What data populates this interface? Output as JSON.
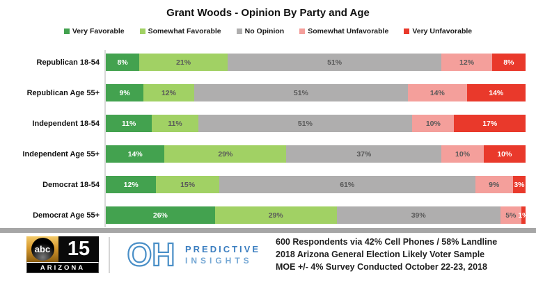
{
  "chart_data": {
    "type": "bar",
    "orientation": "horizontal",
    "stacked": true,
    "title": "Grant Woods - Opinion By Party and Age",
    "legend_position": "top",
    "xlim": [
      0,
      100
    ],
    "value_suffix": "%",
    "categories": [
      "Republican 18-54",
      "Republican Age 55+",
      "Independent 18-54",
      "Independent Age 55+",
      "Democrat 18-54",
      "Democrat Age 55+"
    ],
    "series": [
      {
        "name": "Very Favorable",
        "color": "#43A24F",
        "label_color": "#ffffff",
        "values": [
          8,
          9,
          11,
          14,
          12,
          26
        ]
      },
      {
        "name": "Somewhat Favorable",
        "color": "#A1D164",
        "label_color": "#595959",
        "values": [
          21,
          12,
          11,
          29,
          15,
          29
        ]
      },
      {
        "name": "No Opinion",
        "color": "#AFAEAE",
        "label_color": "#595959",
        "values": [
          51,
          51,
          51,
          37,
          61,
          39
        ]
      },
      {
        "name": "Somewhat Unfavorable",
        "color": "#F49F9B",
        "label_color": "#595959",
        "values": [
          12,
          14,
          10,
          10,
          9,
          5
        ]
      },
      {
        "name": "Very Unfavorable",
        "color": "#E9392B",
        "label_color": "#ffffff",
        "values": [
          8,
          14,
          17,
          10,
          3,
          1
        ]
      }
    ]
  },
  "footer": {
    "lines": [
      "600 Respondents via 42% Cell Phones / 58% Landline",
      "2018 Arizona General Election Likely Voter Sample",
      "MOE +/- 4% Survey Conducted October 22-23, 2018"
    ],
    "abc_logo": {
      "abc": "abc",
      "number": "15",
      "region": "ARIZONA"
    },
    "oh_logo": {
      "monogram": "OH",
      "line1": "PREDICTIVE",
      "line2": "INSIGHTS"
    }
  }
}
